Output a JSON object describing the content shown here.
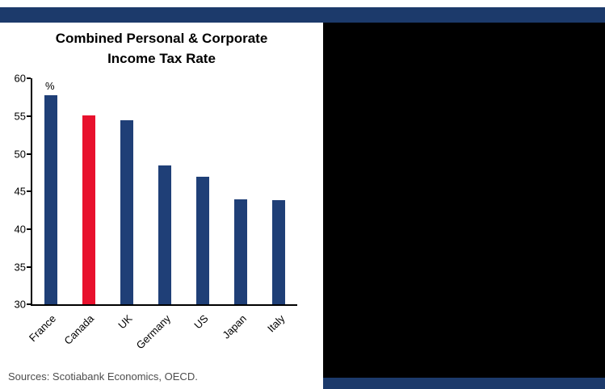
{
  "page": {
    "top_banner_color": "#1c3a6b",
    "right_panel_color": "#000000",
    "bottom_banner_color": "#1c3a6b"
  },
  "chart_data": {
    "type": "bar",
    "title": "Combined Personal & Corporate Income Tax Rate",
    "unit_label": "%",
    "categories": [
      "France",
      "Canada",
      "UK",
      "Germany",
      "US",
      "Japan",
      "Italy"
    ],
    "values": [
      57.8,
      55.1,
      54.5,
      48.5,
      47.0,
      44.0,
      43.8
    ],
    "bar_colors": [
      "#1f3f77",
      "#e8112d",
      "#1f3f77",
      "#1f3f77",
      "#1f3f77",
      "#1f3f77",
      "#1f3f77"
    ],
    "highlighted_category": "Canada",
    "ylim": [
      30,
      60
    ],
    "yticks": [
      30,
      35,
      40,
      45,
      50,
      55,
      60
    ],
    "grid": false,
    "legend_position": "none"
  },
  "source_note": "Sources: Scotiabank Economics, OECD."
}
